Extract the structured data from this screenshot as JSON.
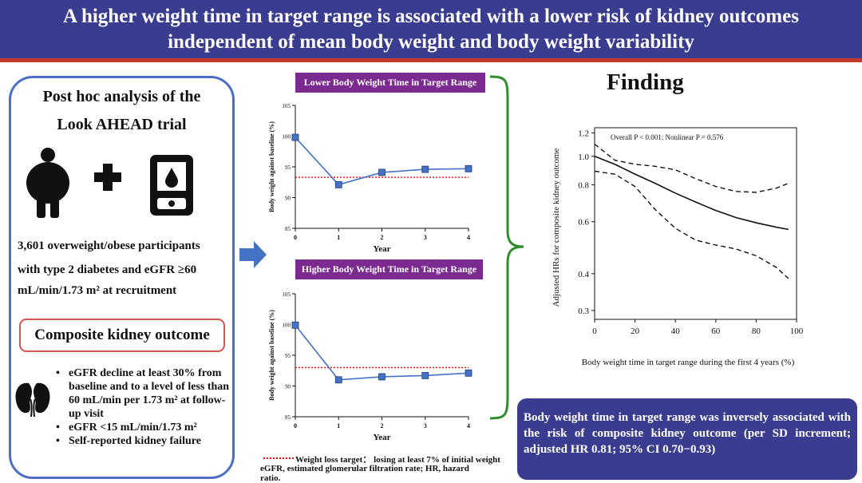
{
  "header": {
    "line1": "A higher weight time in target range is associated with a lower risk of kidney outcomes",
    "line2": "independent of mean body weight and body weight  variability"
  },
  "left": {
    "title_line1": "Post hoc analysis of the",
    "title_line2": "Look AHEAD trial",
    "icons": [
      "obese-person-icon",
      "plus-icon",
      "glucose-meter-icon",
      "kidney-icon"
    ],
    "participants_line1": "3,601  overweight/obese  participants",
    "participants_line2": "with  type  2  diabetes  and  eGFR  ≥60",
    "participants_line3": "mL/min/1.73 m² at recruitment",
    "outcome_title": "Composite kidney outcome",
    "bullets": [
      "eGFR decline at least 30% from baseline and to a level of less than 60 mL/min per 1.73 m² at follow-up visit",
      "eGFR <15 mL/min/1.73 m²",
      "Self-reported kidney failure"
    ]
  },
  "finding_title": "Finding",
  "conclusion": "Body weight time in target range was inversely associated with the risk of composite kidney outcome (per SD increment; adjusted HR 0.81; 95% CI 0.70−0.93)",
  "footer": {
    "legend": "Weight loss target：  losing at least 7% of initial weight",
    "abbrev_line1": "eGFR, estimated glomerular filtration rate; HR, hazard",
    "abbrev_line2": "ratio."
  },
  "colors": {
    "header_bg": "#3a3d8f",
    "accent_red": "#c0392b",
    "panel_purple": "#7b2a8f",
    "marker_blue": "#4472c4",
    "bracket_green": "#2e8b2e",
    "arrow_blue": "#4472c4"
  },
  "chart_data": [
    {
      "type": "line",
      "title": "Lower Body Weight Time in Target Range",
      "xlabel": "Year",
      "ylabel": "Body weight against baseline (%)",
      "x": [
        0,
        1,
        2,
        3,
        4
      ],
      "series": [
        {
          "values": [
            99.8,
            92.1,
            94.1,
            94.6,
            94.7
          ]
        }
      ],
      "reference_line": 93.3,
      "xlim": [
        0,
        4
      ],
      "ylim": [
        85,
        105
      ],
      "yticks": [
        85,
        90,
        95,
        100,
        105
      ],
      "xticks": [
        0,
        1,
        2,
        3,
        4
      ]
    },
    {
      "type": "line",
      "title": "Higher Body Weight Time in Target Range",
      "xlabel": "Year",
      "ylabel": "Body weight against baseline (%)",
      "x": [
        0,
        1,
        2,
        3,
        4
      ],
      "series": [
        {
          "values": [
            99.9,
            91.0,
            91.5,
            91.7,
            92.1
          ]
        }
      ],
      "reference_line": 93.0,
      "xlim": [
        0,
        4
      ],
      "ylim": [
        85,
        105
      ],
      "yticks": [
        85,
        90,
        95,
        100,
        105
      ],
      "xticks": [
        0,
        1,
        2,
        3,
        4
      ]
    },
    {
      "type": "line",
      "annotation": "Overall P < 0.001; Nonlinear P = 0.576",
      "xlabel": "Body weight time in target range during the first 4 years  (%)",
      "ylabel": "Adjusted HRs for composite kidney outcome",
      "y_scale": "log",
      "x": [
        0,
        10,
        20,
        30,
        40,
        50,
        60,
        70,
        80,
        90,
        96
      ],
      "series": [
        {
          "name": "estimate",
          "values": [
            1.0,
            0.94,
            0.87,
            0.81,
            0.75,
            0.7,
            0.655,
            0.62,
            0.595,
            0.575,
            0.565
          ]
        },
        {
          "name": "upper",
          "values": [
            1.1,
            0.97,
            0.94,
            0.925,
            0.9,
            0.84,
            0.79,
            0.76,
            0.755,
            0.78,
            0.81
          ]
        },
        {
          "name": "lower",
          "values": [
            0.89,
            0.87,
            0.79,
            0.66,
            0.57,
            0.52,
            0.5,
            0.485,
            0.46,
            0.42,
            0.385
          ]
        }
      ],
      "xlim": [
        0,
        100
      ],
      "ylim": [
        0.28,
        1.25
      ],
      "yticks": [
        0.3,
        0.4,
        0.6,
        0.8,
        1.0,
        1.2
      ],
      "ytick_labels": [
        "0.3",
        "0.4",
        "0.6",
        "0.8",
        "1.0",
        "1.2"
      ],
      "xticks": [
        0,
        20,
        40,
        60,
        80,
        100
      ]
    }
  ]
}
